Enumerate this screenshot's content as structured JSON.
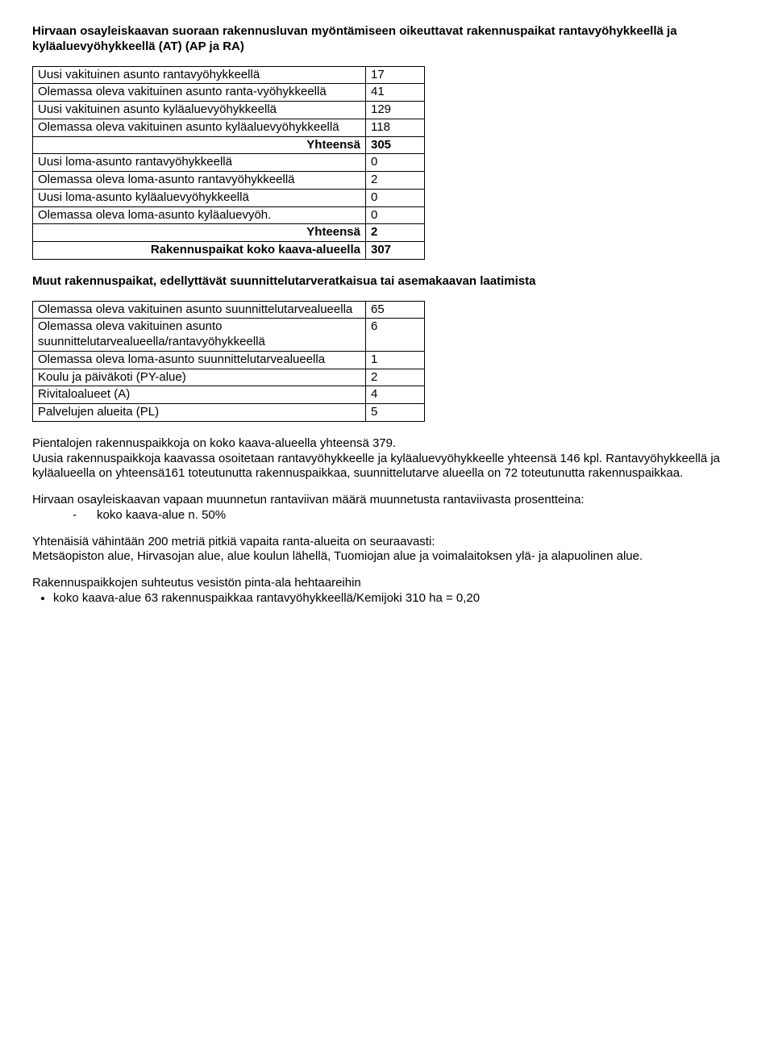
{
  "title": {
    "line1": "Hirvaan osayleiskaavan suoraan rakennusluvan myöntämiseen oikeuttavat rakennuspaikat rantavyöhykkeellä ja kyläaluevyöhykkeellä (AT) (AP ja RA)"
  },
  "table1": {
    "rows": [
      {
        "label": "Uusi vakituinen asunto rantavyöhykkeellä",
        "value": "17"
      },
      {
        "label": "Olemassa oleva vakituinen asunto ranta-vyöhykkeellä",
        "value": "41"
      },
      {
        "label": "Uusi vakituinen asunto kyläaluevyöhykkeellä",
        "value": "129"
      },
      {
        "label": "Olemassa oleva vakituinen asunto kyläaluevyöhykkeellä",
        "value": "118"
      },
      {
        "label": "Yhteensä",
        "value": "305",
        "bold": true,
        "align": "right"
      },
      {
        "label": "Uusi loma-asunto rantavyöhykkeellä",
        "value": "0"
      },
      {
        "label": "Olemassa oleva loma-asunto rantavyöhykkeellä",
        "value": "2"
      },
      {
        "label": "Uusi loma-asunto kyläaluevyöhykkeellä",
        "value": "0"
      },
      {
        "label": "Olemassa oleva loma-asunto kyläaluevyöh.",
        "value": "0"
      },
      {
        "label": "Yhteensä",
        "value": "2",
        "bold": true,
        "align": "right"
      },
      {
        "label": "Rakennuspaikat koko kaava-alueella",
        "value": "307",
        "bold": true,
        "align": "right"
      }
    ]
  },
  "subtitle2": "Muut rakennuspaikat, edellyttävät suunnittelutarveratkaisua tai asemakaavan laatimista",
  "table2": {
    "rows": [
      {
        "label": "Olemassa oleva vakituinen asunto suunnittelutarvealueella",
        "value": "65"
      },
      {
        "label": "Olemassa oleva vakituinen asunto suunnittelutarvealueella/rantavyöhykkeellä",
        "value": "6"
      },
      {
        "label": "Olemassa oleva loma-asunto suunnittelutarvealueella",
        "value": "1"
      },
      {
        "label": "Koulu ja päiväkoti (PY-alue)",
        "value": "2"
      },
      {
        "label": "Rivitaloalueet (A)",
        "value": "4"
      },
      {
        "label": "Palvelujen alueita (PL)",
        "value": "5"
      }
    ]
  },
  "para1": "Pientalojen rakennuspaikkoja on koko kaava-alueella yhteensä 379.",
  "para2": "Uusia rakennuspaikkoja kaavassa osoitetaan rantavyöhykkeelle ja kyläaluevyöhykkeelle yhteensä 146 kpl. Rantavyöhykkeellä ja kyläalueella on yhteensä161 toteutunutta rakennuspaikkaa, suunnittelutarve alueella on 72 toteutunutta rakennuspaikkaa.",
  "para3": "Hirvaan osayleiskaavan vapaan muunnetun rantaviivan määrä muunnetusta rantaviivasta prosentteina:",
  "dash1": "koko kaava-alue n. 50%",
  "para4": "Yhtenäisiä vähintään 200 metriä pitkiä vapaita ranta-alueita on seuraavasti:",
  "para5": "Metsäopiston alue, Hirvasojan alue, alue koulun lähellä, Tuomiojan alue ja voimalaitoksen ylä- ja alapuolinen alue.",
  "para6": "Rakennuspaikkojen suhteutus vesistön pinta-ala hehtaareihin",
  "bullet1": "koko kaava-alue 63 rakennuspaikkaa rantavyöhykkeellä/Kemijoki 310 ha = 0,20"
}
